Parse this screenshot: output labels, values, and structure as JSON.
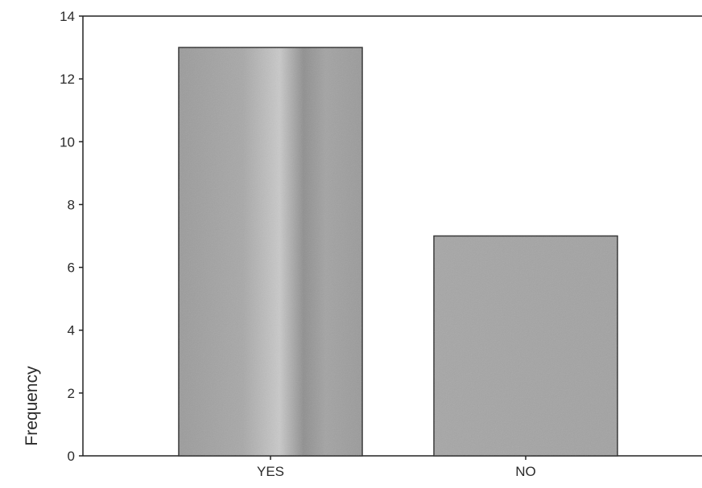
{
  "chart_data": {
    "type": "bar",
    "title": "",
    "xlabel": "",
    "ylabel": "Frequency",
    "categories": [
      "YES",
      "NO"
    ],
    "values": [
      13,
      7
    ],
    "ylim": [
      0,
      14
    ],
    "yticks": [
      0,
      2,
      4,
      6,
      8,
      10,
      12,
      14
    ],
    "grid": false,
    "legend": "none",
    "colors": {
      "bar_fill": "#a9a9a9",
      "bar_stroke": "#333333",
      "axis": "#222222",
      "text": "#2a2a2a"
    }
  }
}
